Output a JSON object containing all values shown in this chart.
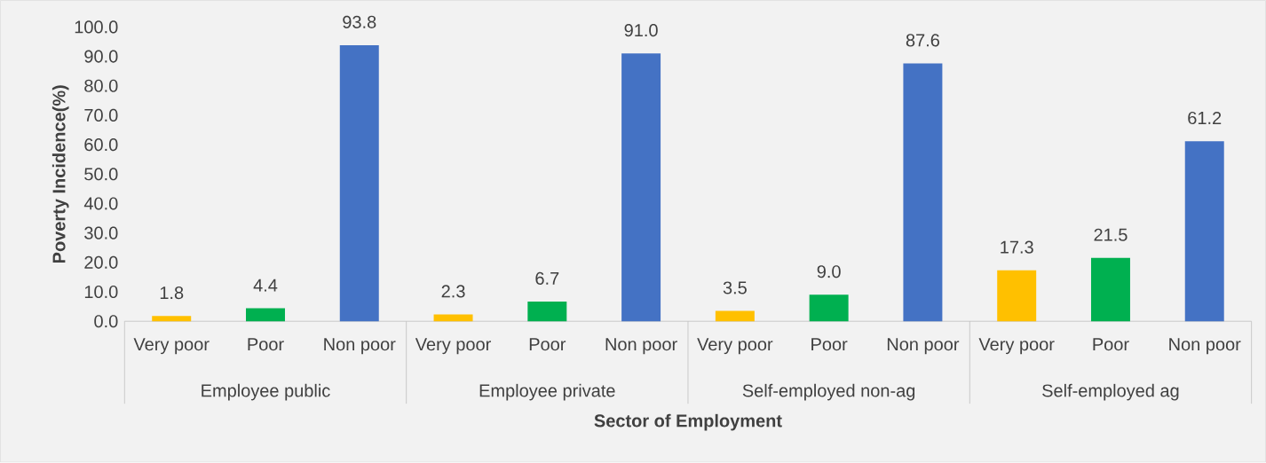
{
  "chart_data": {
    "type": "bar",
    "xlabel": "Sector of Employment",
    "ylabel": "Poverty Incidence(%)",
    "categories": [
      "Very poor",
      "Poor",
      "Non poor",
      "Very poor",
      "Poor",
      "Non poor",
      "Very poor",
      "Poor",
      "Non poor",
      "Very poor",
      "Poor",
      "Non poor"
    ],
    "values": [
      1.8,
      4.4,
      93.8,
      2.3,
      6.7,
      91.0,
      3.5,
      9.0,
      87.6,
      17.3,
      21.5,
      61.2
    ],
    "colors": [
      "#ffc000",
      "#00b050",
      "#4472c4",
      "#ffc000",
      "#00b050",
      "#4472c4",
      "#ffc000",
      "#00b050",
      "#4472c4",
      "#ffc000",
      "#00b050",
      "#4472c4"
    ],
    "annotations": [
      "Employee public",
      "Employee private",
      "Self-employed non-ag",
      "Self-employed ag"
    ],
    "ylim": [
      0,
      100
    ],
    "yticks": [
      {
        "value": 0,
        "label": "0.0"
      },
      {
        "value": 10,
        "label": "10.0"
      },
      {
        "value": 20,
        "label": "20.0"
      },
      {
        "value": 30,
        "label": "30.0"
      },
      {
        "value": 40,
        "label": "40.0"
      },
      {
        "value": 50,
        "label": "50.0"
      },
      {
        "value": 60,
        "label": "60.0"
      },
      {
        "value": 70,
        "label": "70.0"
      },
      {
        "value": 80,
        "label": "80.0"
      },
      {
        "value": 90,
        "label": "90.0"
      },
      {
        "value": 100,
        "label": "100.0"
      }
    ],
    "value_labels": [
      "1.8",
      "4.4",
      "93.8",
      "2.3",
      "6.7",
      "91.0",
      "3.5",
      "9.0",
      "87.6",
      "17.3",
      "21.5",
      "61.2"
    ],
    "grid": false
  }
}
